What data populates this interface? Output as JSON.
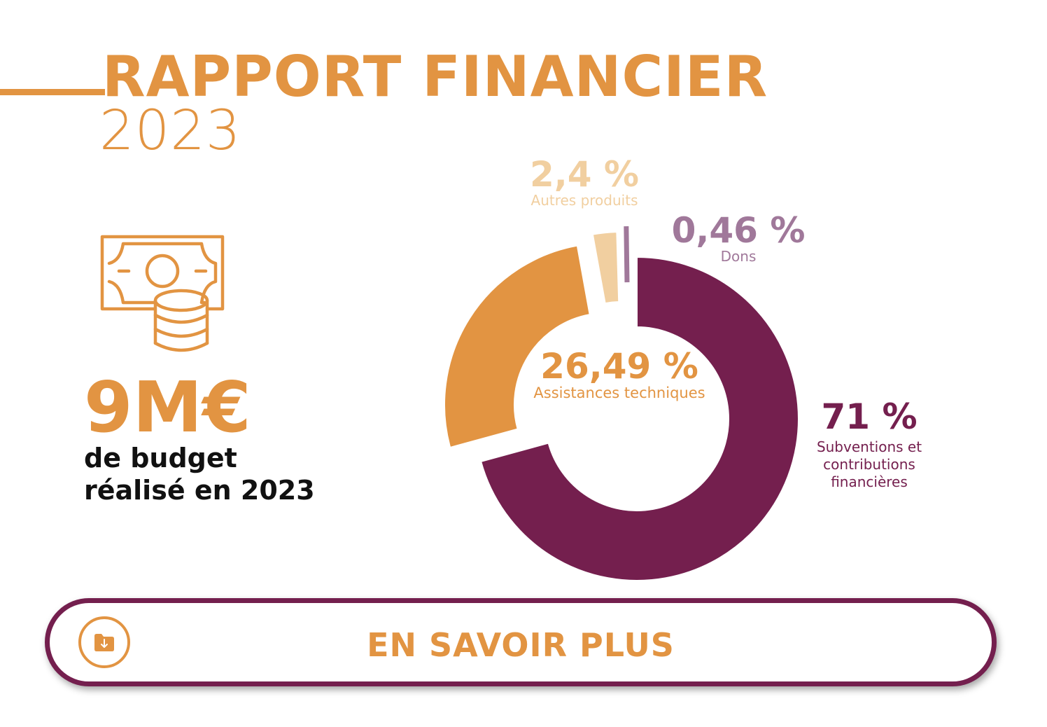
{
  "header": {
    "title": "RAPPORT FINANCIER",
    "year": "2023"
  },
  "budget": {
    "value": "9M€",
    "caption_line1": "de budget",
    "caption_line2": "réalisé en 2023",
    "icon": "money-bill-coins-icon"
  },
  "colors": {
    "orange": "#e29442",
    "light_orange": "#f1cfa0",
    "purple": "#741f4e",
    "mauve": "#a0789a"
  },
  "chart_data": {
    "type": "pie",
    "title": "",
    "donut": true,
    "categories": [
      "Subventions et contributions financières",
      "Assistances techniques",
      "Autres produits",
      "Dons"
    ],
    "values": [
      71,
      26.49,
      2.4,
      0.46
    ],
    "value_labels": [
      "71 %",
      "26,49 %",
      "2,4 %",
      "0,46 %"
    ],
    "colors": [
      "#741f4e",
      "#e29442",
      "#f1cfa0",
      "#a0789a"
    ],
    "exploded": [
      false,
      true,
      true,
      false
    ]
  },
  "button": {
    "label": "EN SAVOIR PLUS",
    "icon": "folder-download-icon"
  }
}
